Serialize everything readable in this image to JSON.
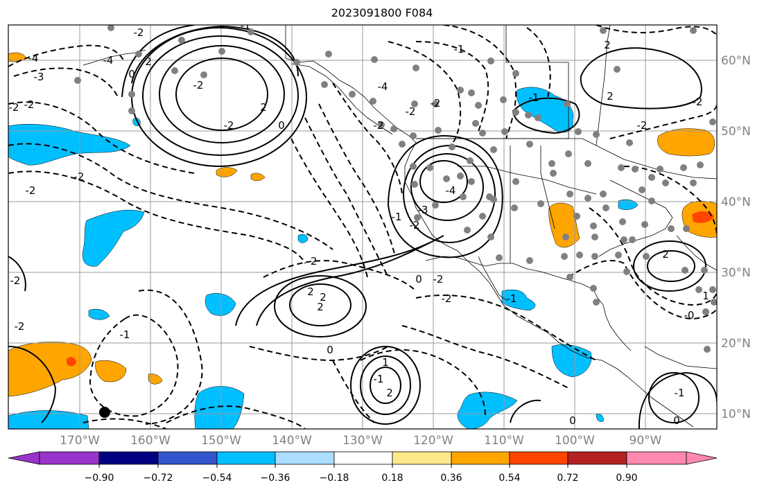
{
  "title": "2023091800 F084",
  "map": {
    "lon_labels": [
      "170°W",
      "160°W",
      "150°W",
      "140°W",
      "130°W",
      "120°W",
      "110°W",
      "100°W",
      "90°W"
    ],
    "lat_labels": [
      "60°N",
      "50°N",
      "40°N",
      "30°N",
      "20°N",
      "10°N"
    ],
    "contour_labels": [
      "-4",
      "-3",
      "-2",
      "-2",
      "-2",
      "-2",
      "0",
      "2",
      "-4",
      "-2",
      "-1",
      "-2",
      "-2",
      "2",
      "-4",
      "-2",
      "-2",
      "0",
      "-1",
      "-2",
      "-2",
      "-4",
      "-3",
      "-2",
      "-1",
      "2",
      "2",
      "2",
      "-1",
      "-2",
      "-1",
      "0",
      "-2",
      "0",
      "1",
      "-1",
      "2",
      "-2",
      "-1",
      "0",
      "2",
      "-2",
      "2",
      "-0",
      "-2",
      "-1",
      "0",
      "1",
      "2",
      "-2"
    ]
  },
  "colorbar": {
    "labels": [
      "−0.90",
      "−0.72",
      "−0.54",
      "−0.36",
      "−0.18",
      "0.18",
      "0.36",
      "0.54",
      "0.72",
      "0.90"
    ],
    "colors": [
      "#9933cc",
      "#000080",
      "#3355cc",
      "#00bfff",
      "#aaddff",
      "#ffffff",
      "#ffe98a",
      "#ffa500",
      "#ff4500",
      "#b22222",
      "#ff88b0"
    ]
  }
}
